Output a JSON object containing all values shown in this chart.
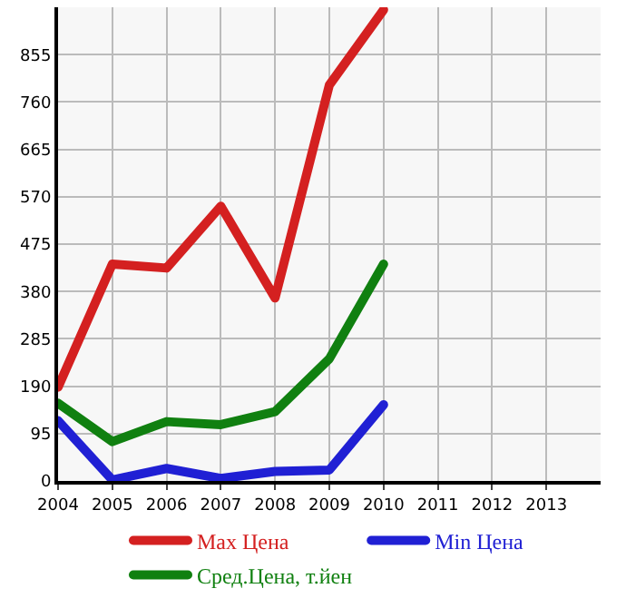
{
  "chart_data": {
    "type": "line",
    "x": [
      2004,
      2005,
      2006,
      2007,
      2008,
      2009,
      2010
    ],
    "series": [
      {
        "name": "Max Цена",
        "color": "#d42020",
        "values": [
          188,
          435,
          427,
          551,
          367,
          794,
          945
        ]
      },
      {
        "name": "Min Цена",
        "color": "#2020d4",
        "values": [
          121,
          2,
          25,
          5,
          19,
          22,
          153
        ]
      },
      {
        "name": "Сред.Цена, т.йен",
        "color": "#108010",
        "values": [
          156,
          79,
          119,
          113,
          139,
          245,
          435
        ]
      }
    ],
    "xlim": [
      2004,
      2014
    ],
    "xticks": [
      2004,
      2005,
      2006,
      2007,
      2008,
      2009,
      2010,
      2011,
      2012,
      2013
    ],
    "ylim": [
      0,
      950
    ],
    "yticks": [
      0,
      95,
      190,
      285,
      380,
      475,
      570,
      665,
      760,
      855
    ],
    "grid": true,
    "legend": "bottom",
    "marker": "none",
    "line_style": "solid"
  }
}
